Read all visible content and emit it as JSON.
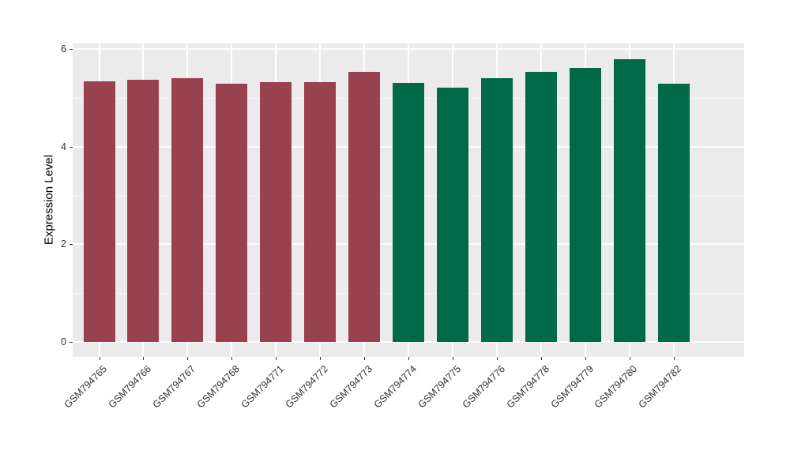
{
  "chart_data": {
    "type": "bar",
    "title": "",
    "xlabel": "",
    "ylabel": "Expression Level",
    "categories": [
      "GSM794765",
      "GSM794766",
      "GSM794767",
      "GSM794768",
      "GSM794771",
      "GSM794772",
      "GSM794773",
      "GSM794774",
      "GSM794775",
      "GSM794776",
      "GSM794778",
      "GSM794779",
      "GSM794780",
      "GSM794782"
    ],
    "values": [
      5.34,
      5.38,
      5.41,
      5.29,
      5.32,
      5.32,
      5.53,
      5.3,
      5.21,
      5.4,
      5.54,
      5.61,
      5.8,
      5.29
    ],
    "bar_colors": [
      "#9A4150",
      "#9A4150",
      "#9A4150",
      "#9A4150",
      "#9A4150",
      "#9A4150",
      "#9A4150",
      "#006A48",
      "#006A48",
      "#006A48",
      "#006A48",
      "#006A48",
      "#006A48",
      "#006A48"
    ],
    "group_colors": {
      "left_group": "#9A4150",
      "right_group": "#006A48"
    },
    "yticks": [
      0,
      2,
      4,
      6
    ],
    "yticks_minor": [
      1,
      3,
      5
    ],
    "ylim": [
      -0.31,
      6.12
    ],
    "grid": true,
    "legend": "none",
    "panel_background": "#EBEBEB",
    "gridline_major_color": "#FFFFFF",
    "gridline_minor_color": "rgba(255,255,255,0.6)",
    "tick_mark_color": "#333333",
    "axis_text_color": "#303030"
  }
}
